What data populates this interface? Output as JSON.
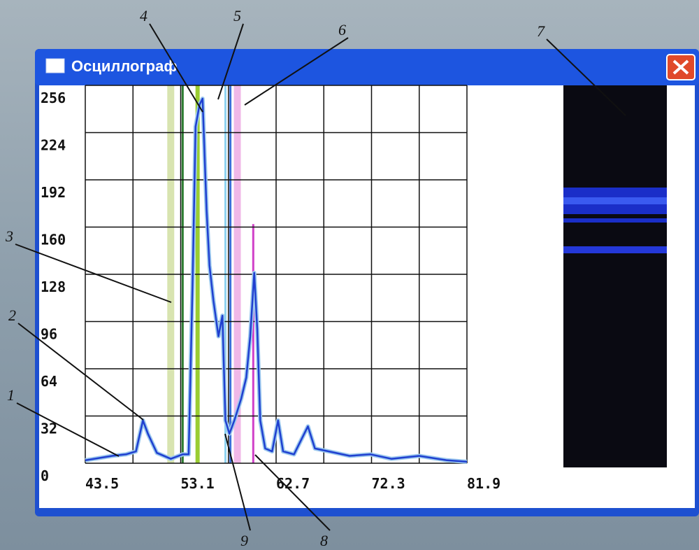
{
  "window": {
    "title": "Осциллограф"
  },
  "chart_data": {
    "type": "line",
    "color": "#1f3fd0",
    "x": [
      43.5,
      46.2,
      47.6,
      48.6,
      49.3,
      49.8,
      50.7,
      52.1,
      53.3,
      53.9,
      54.3,
      54.6,
      55.0,
      55.3,
      55.7,
      56.0,
      56.4,
      56.9,
      57.3,
      57.6,
      58.0,
      58.5,
      59.2,
      59.7,
      60.1,
      60.5,
      60.8,
      61.1,
      61.6,
      62.3,
      62.9,
      63.4,
      64.5,
      65.9,
      66.6,
      68.0,
      70.1,
      72.2,
      74.3,
      77.1,
      79.9,
      81.9
    ],
    "values": [
      2,
      5,
      6,
      8,
      29,
      20,
      7,
      3,
      6,
      6,
      124,
      228,
      243,
      247,
      172,
      134,
      110,
      86,
      100,
      29,
      20,
      29,
      44,
      58,
      86,
      129,
      91,
      29,
      10,
      8,
      29,
      8,
      6,
      25,
      10,
      8,
      5,
      6,
      3,
      5,
      2,
      1
    ],
    "xlim": [
      43.5,
      81.9
    ],
    "ylim": [
      0,
      256
    ],
    "xticks": [
      43.5,
      53.1,
      62.7,
      72.3,
      81.9
    ],
    "yticks": [
      0,
      32,
      64,
      96,
      128,
      160,
      192,
      224,
      256
    ],
    "grid": true,
    "markers": [
      {
        "x": 52.1,
        "color": "#d8e4b0"
      },
      {
        "x": 53.3,
        "color": "#2e7d32"
      },
      {
        "x": 54.8,
        "color": "#9acd32"
      },
      {
        "x": 57.6,
        "color": "#8fd3f0"
      },
      {
        "x": 58.1,
        "color": "#3a6fd8"
      },
      {
        "x": 58.8,
        "color": "#f0b8e8"
      },
      {
        "x": 60.4,
        "color": "#d040c8",
        "y": 162
      }
    ]
  },
  "callouts": [
    "1",
    "2",
    "3",
    "4",
    "5",
    "6",
    "7",
    "8",
    "9"
  ]
}
